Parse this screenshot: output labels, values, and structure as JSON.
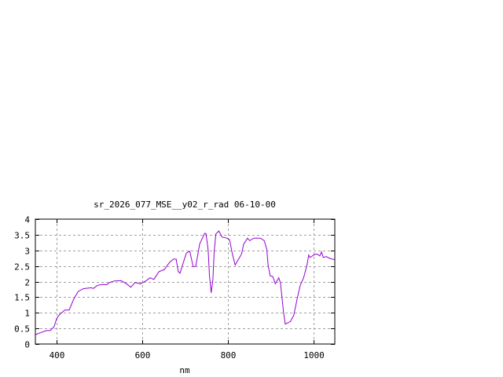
{
  "chart_data": {
    "type": "line",
    "title": "sr_2026_077_MSE__y02_r_rad 06-10-00",
    "xlabel": "nm",
    "ylabel": "",
    "xlim": [
      350,
      1050
    ],
    "ylim": [
      0,
      4
    ],
    "xticks": [
      400,
      600,
      800,
      1000
    ],
    "yticks": [
      0,
      0.5,
      1,
      1.5,
      2,
      2.5,
      3,
      3.5,
      4
    ],
    "xtick_labels": [
      "400",
      "600",
      "800",
      "1000"
    ],
    "ytick_labels": [
      "0",
      "0.5",
      "1",
      "1.5",
      "2",
      "2.5",
      "3",
      "3.5",
      "4"
    ],
    "grid": true,
    "line_color": "#9400d3",
    "series": [
      {
        "x": [
          350,
          363,
          376,
          385,
          394,
          400,
          407,
          419,
          429,
          440,
          450,
          462,
          480,
          486,
          495,
          508,
          517,
          523,
          535,
          550,
          563,
          573,
          583,
          596,
          609,
          618,
          627,
          639,
          651,
          664,
          673,
          679,
          684,
          688,
          697,
          703,
          711,
          719,
          725,
          734,
          746,
          749,
          754,
          757,
          761,
          765,
          768,
          772,
          779,
          786,
          798,
          804,
          810,
          817,
          832,
          837,
          846,
          851,
          861,
          876,
          885,
          891,
          894,
          899,
          905,
          911,
          919,
          923,
          930,
          934,
          946,
          954,
          962,
          969,
          977,
          985,
          989,
          992,
          1003,
          1009,
          1015,
          1019,
          1023,
          1030,
          1039,
          1050
        ],
        "y": [
          0.3,
          0.37,
          0.43,
          0.43,
          0.56,
          0.82,
          0.95,
          1.09,
          1.09,
          1.45,
          1.68,
          1.77,
          1.8,
          1.78,
          1.88,
          1.91,
          1.9,
          1.97,
          2.02,
          2.03,
          1.93,
          1.82,
          1.97,
          1.93,
          2.03,
          2.12,
          2.07,
          2.32,
          2.38,
          2.62,
          2.72,
          2.72,
          2.32,
          2.27,
          2.66,
          2.91,
          2.97,
          2.47,
          2.49,
          3.2,
          3.55,
          3.53,
          2.99,
          2.2,
          1.64,
          2.07,
          2.95,
          3.53,
          3.62,
          3.43,
          3.39,
          3.34,
          2.91,
          2.53,
          2.88,
          3.2,
          3.39,
          3.31,
          3.39,
          3.39,
          3.31,
          3.03,
          2.53,
          2.18,
          2.16,
          1.93,
          2.12,
          1.95,
          1.03,
          0.64,
          0.72,
          0.91,
          1.45,
          1.87,
          2.12,
          2.53,
          2.85,
          2.77,
          2.87,
          2.88,
          2.82,
          2.95,
          2.77,
          2.8,
          2.74,
          2.7
        ]
      }
    ]
  }
}
